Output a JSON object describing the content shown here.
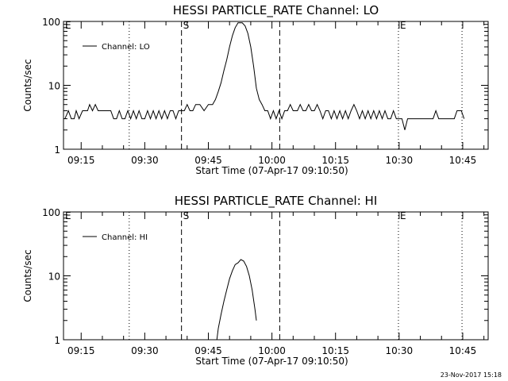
{
  "footer_text": "23-Nov-2017 15:18",
  "chart_data": [
    {
      "type": "line",
      "title": "HESSI PARTICLE_RATE Channel: LO",
      "xlabel": "Start Time (07-Apr-17 09:10:50)",
      "ylabel": "Counts/sec",
      "yscale": "log",
      "ylim": [
        1,
        100
      ],
      "xlim": [
        "09:10:50",
        "10:51:00"
      ],
      "x_ticks": [
        "09:15",
        "09:30",
        "09:45",
        "10:00",
        "10:15",
        "10:30",
        "10:45"
      ],
      "y_ticks": [
        "1",
        "10",
        "100"
      ],
      "legend": {
        "placement": "top-left",
        "entries": [
          "Channel: LO"
        ]
      },
      "markers": [
        {
          "label": "E",
          "time": "09:10:50",
          "style": "none"
        },
        {
          "label": "",
          "time": "09:26:20",
          "style": "dotted"
        },
        {
          "label": "S",
          "time": "09:38:40",
          "style": "dashed"
        },
        {
          "label": "",
          "time": "10:01:50",
          "style": "dashed"
        },
        {
          "label": "E",
          "time": "10:29:50",
          "style": "dotted"
        },
        {
          "label": "",
          "time": "10:44:50",
          "style": "dotted"
        }
      ],
      "series": [
        {
          "name": "Channel: LO",
          "color": "#000000",
          "points": [
            [
              "09:11:10",
              3
            ],
            [
              "09:12:00",
              4
            ],
            [
              "09:12:40",
              3
            ],
            [
              "09:13:20",
              3
            ],
            [
              "09:13:50",
              4
            ],
            [
              "09:14:30",
              3
            ],
            [
              "09:15:20",
              4
            ],
            [
              "09:16:30",
              4
            ],
            [
              "09:17:00",
              5
            ],
            [
              "09:17:40",
              4
            ],
            [
              "09:18:20",
              5
            ],
            [
              "09:19:00",
              4
            ],
            [
              "09:20:30",
              4
            ],
            [
              "09:21:10",
              4
            ],
            [
              "09:22:00",
              4
            ],
            [
              "09:22:40",
              3
            ],
            [
              "09:23:20",
              3
            ],
            [
              "09:24:00",
              4
            ],
            [
              "09:24:40",
              3
            ],
            [
              "09:25:20",
              3
            ],
            [
              "09:26:00",
              4
            ],
            [
              "09:26:40",
              3
            ],
            [
              "09:27:20",
              4
            ],
            [
              "09:28:00",
              3
            ],
            [
              "09:28:40",
              4
            ],
            [
              "09:29:20",
              3
            ],
            [
              "09:30:00",
              3
            ],
            [
              "09:30:40",
              4
            ],
            [
              "09:31:20",
              3
            ],
            [
              "09:32:00",
              4
            ],
            [
              "09:32:40",
              3
            ],
            [
              "09:33:20",
              4
            ],
            [
              "09:34:00",
              3
            ],
            [
              "09:34:40",
              4
            ],
            [
              "09:35:20",
              3
            ],
            [
              "09:36:00",
              4
            ],
            [
              "09:36:40",
              4
            ],
            [
              "09:37:20",
              3
            ],
            [
              "09:38:00",
              4
            ],
            [
              "09:38:40",
              4
            ],
            [
              "09:39:20",
              4
            ],
            [
              "09:40:00",
              5
            ],
            [
              "09:40:40",
              4
            ],
            [
              "09:41:20",
              4
            ],
            [
              "09:42:00",
              5
            ],
            [
              "09:43:00",
              5
            ],
            [
              "09:44:00",
              4
            ],
            [
              "09:45:00",
              5
            ],
            [
              "09:46:00",
              5
            ],
            [
              "09:46:40",
              6
            ],
            [
              "09:47:20",
              8
            ],
            [
              "09:48:00",
              11
            ],
            [
              "09:48:40",
              17
            ],
            [
              "09:49:20",
              25
            ],
            [
              "09:50:00",
              40
            ],
            [
              "09:50:40",
              60
            ],
            [
              "09:51:20",
              80
            ],
            [
              "09:52:00",
              95
            ],
            [
              "09:53:00",
              95
            ],
            [
              "09:53:40",
              85
            ],
            [
              "09:54:20",
              65
            ],
            [
              "09:55:00",
              40
            ],
            [
              "09:55:40",
              20
            ],
            [
              "09:56:20",
              9
            ],
            [
              "09:57:00",
              6
            ],
            [
              "09:57:40",
              5
            ],
            [
              "09:58:20",
              4
            ],
            [
              "09:59:00",
              4
            ],
            [
              "09:59:40",
              3
            ],
            [
              "10:00:20",
              4
            ],
            [
              "10:01:00",
              3
            ],
            [
              "10:01:40",
              4
            ],
            [
              "10:02:20",
              3
            ],
            [
              "10:03:00",
              4
            ],
            [
              "10:03:40",
              4
            ],
            [
              "10:04:20",
              5
            ],
            [
              "10:05:00",
              4
            ],
            [
              "10:06:00",
              4
            ],
            [
              "10:06:40",
              5
            ],
            [
              "10:07:20",
              4
            ],
            [
              "10:08:00",
              4
            ],
            [
              "10:08:40",
              5
            ],
            [
              "10:09:20",
              4
            ],
            [
              "10:10:00",
              4
            ],
            [
              "10:10:40",
              5
            ],
            [
              "10:11:20",
              4
            ],
            [
              "10:12:00",
              3
            ],
            [
              "10:12:40",
              4
            ],
            [
              "10:13:20",
              4
            ],
            [
              "10:14:00",
              3
            ],
            [
              "10:14:40",
              4
            ],
            [
              "10:15:20",
              3
            ],
            [
              "10:16:00",
              4
            ],
            [
              "10:16:40",
              3
            ],
            [
              "10:17:20",
              4
            ],
            [
              "10:18:00",
              3
            ],
            [
              "10:18:40",
              4
            ],
            [
              "10:19:20",
              5
            ],
            [
              "10:20:00",
              4
            ],
            [
              "10:20:40",
              3
            ],
            [
              "10:21:20",
              4
            ],
            [
              "10:22:00",
              3
            ],
            [
              "10:22:40",
              4
            ],
            [
              "10:23:20",
              3
            ],
            [
              "10:24:00",
              4
            ],
            [
              "10:24:40",
              3
            ],
            [
              "10:25:20",
              4
            ],
            [
              "10:26:00",
              3
            ],
            [
              "10:26:40",
              4
            ],
            [
              "10:27:20",
              3
            ],
            [
              "10:28:00",
              3
            ],
            [
              "10:28:40",
              4
            ],
            [
              "10:29:20",
              3
            ],
            [
              "10:30:00",
              3
            ],
            [
              "10:30:40",
              3
            ],
            [
              "10:31:20",
              2
            ],
            [
              "10:32:00",
              3
            ],
            [
              "10:32:40",
              3
            ],
            [
              "10:33:20",
              3
            ],
            [
              "10:34:00",
              3
            ],
            [
              "10:35:00",
              3
            ],
            [
              "10:36:00",
              3
            ],
            [
              "10:37:00",
              3
            ],
            [
              "10:38:00",
              3
            ],
            [
              "10:38:40",
              4
            ],
            [
              "10:39:20",
              3
            ],
            [
              "10:40:00",
              3
            ],
            [
              "10:41:00",
              3
            ],
            [
              "10:42:00",
              3
            ],
            [
              "10:43:00",
              3
            ],
            [
              "10:43:40",
              4
            ],
            [
              "10:44:40",
              4
            ],
            [
              "10:45:20",
              3
            ]
          ]
        }
      ]
    },
    {
      "type": "line",
      "title": "HESSI PARTICLE_RATE Channel: HI",
      "xlabel": "Start Time (07-Apr-17 09:10:50)",
      "ylabel": "Counts/sec",
      "yscale": "log",
      "ylim": [
        1,
        100
      ],
      "xlim": [
        "09:10:50",
        "10:51:00"
      ],
      "x_ticks": [
        "09:15",
        "09:30",
        "09:45",
        "10:00",
        "10:15",
        "10:30",
        "10:45"
      ],
      "y_ticks": [
        "1",
        "10",
        "100"
      ],
      "legend": {
        "placement": "top-left",
        "entries": [
          "Channel: HI"
        ]
      },
      "markers": [
        {
          "label": "E",
          "time": "09:10:50",
          "style": "none"
        },
        {
          "label": "",
          "time": "09:26:20",
          "style": "dotted"
        },
        {
          "label": "S",
          "time": "09:38:40",
          "style": "dashed"
        },
        {
          "label": "",
          "time": "10:01:50",
          "style": "dashed"
        },
        {
          "label": "E",
          "time": "10:29:50",
          "style": "dotted"
        },
        {
          "label": "",
          "time": "10:44:50",
          "style": "dotted"
        }
      ],
      "series": [
        {
          "name": "Channel: HI",
          "color": "#000000",
          "points": [
            [
              "09:47:00",
              1.0
            ],
            [
              "09:47:20",
              1.5
            ],
            [
              "09:48:00",
              2.5
            ],
            [
              "09:48:40",
              4
            ],
            [
              "09:49:20",
              6
            ],
            [
              "09:50:00",
              9
            ],
            [
              "09:50:40",
              12
            ],
            [
              "09:51:20",
              15
            ],
            [
              "09:52:00",
              16
            ],
            [
              "09:52:40",
              18
            ],
            [
              "09:53:20",
              17
            ],
            [
              "09:54:00",
              14
            ],
            [
              "09:54:40",
              10
            ],
            [
              "09:55:20",
              6
            ],
            [
              "09:56:00",
              3
            ],
            [
              "09:56:20",
              2
            ]
          ]
        }
      ]
    }
  ]
}
